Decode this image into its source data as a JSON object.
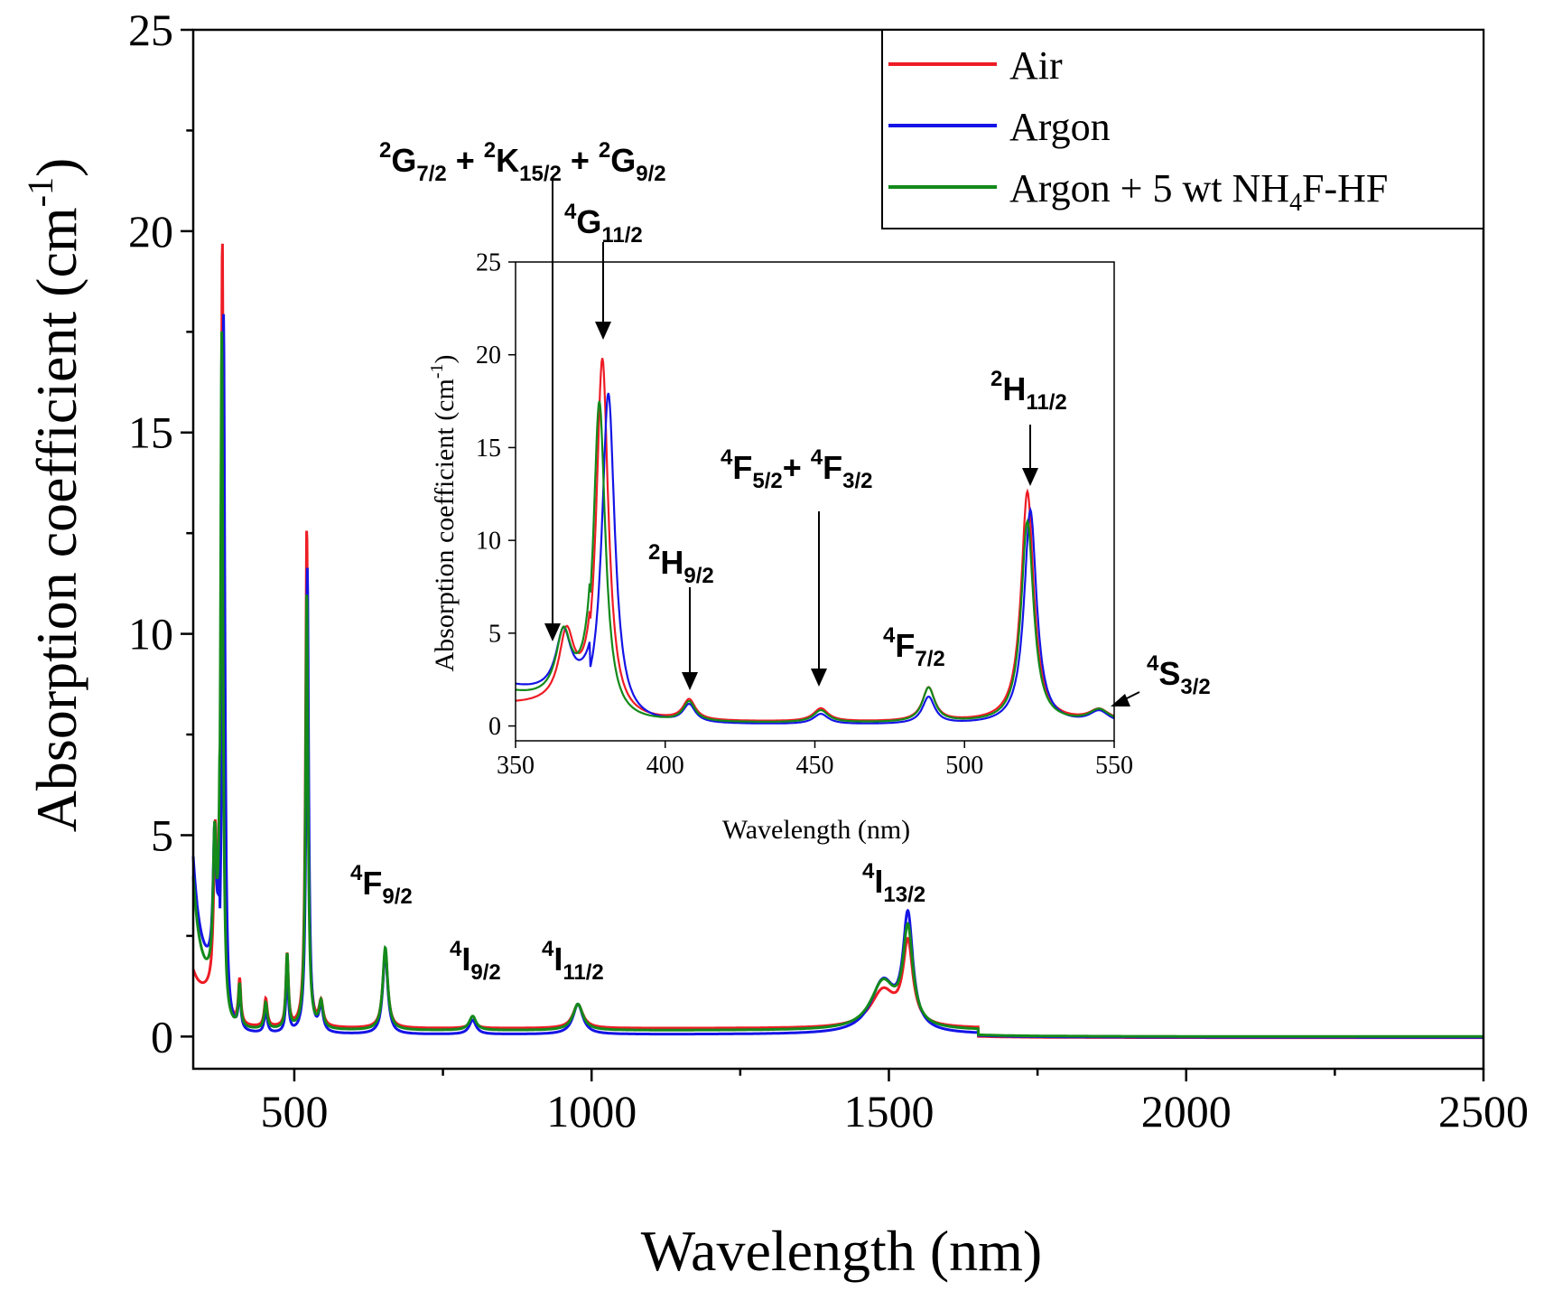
{
  "chart_data": [
    {
      "type": "line",
      "role": "main",
      "xlabel": "Wavelength (nm)",
      "ylabel": "Absorption coefficient (cm",
      "ylabel_sup": "-1",
      "ylabel_tail": ")",
      "xlim": [
        330,
        2500
      ],
      "ylim": [
        -0.8,
        25
      ],
      "x_ticks": [
        500,
        1000,
        1500,
        2000,
        2500
      ],
      "x_tick_labels": [
        "500",
        "1000",
        "1500",
        "2000",
        "2500"
      ],
      "x_minor_ticks": [
        750,
        1250,
        1750,
        2250
      ],
      "y_ticks": [
        0,
        5,
        10,
        15,
        20,
        25
      ],
      "y_tick_labels": [
        "0",
        "5",
        "10",
        "15",
        "20",
        "25"
      ],
      "y_minor_ticks": [
        2.5,
        7.5,
        12.5,
        17.5,
        22.5
      ],
      "legend": {
        "placement": "top-right",
        "entries": [
          {
            "label": "Air",
            "color": "#ee1c25"
          },
          {
            "label": "Argon",
            "color": "#1414e6"
          },
          {
            "label_main": "Argon + 5 wt NH",
            "label_sub": "4",
            "label_tail": "F-HF",
            "color": "#138a1a"
          }
        ]
      },
      "series": [
        {
          "name": "Air",
          "color": "#ee1c25",
          "baseline": 0.2,
          "long_baseline": -0.03,
          "start": 1.6,
          "start_min": 1.0,
          "peaks": [
            [
              367,
              3.8,
              3
            ],
            [
              379,
              19.6,
              2.4
            ],
            [
              408,
              1.3,
              2.5
            ],
            [
              452,
              0.9,
              3
            ],
            [
              488,
              2.0,
              2.5
            ],
            [
              521,
              12.6,
              2.5
            ],
            [
              545,
              0.8,
              4
            ],
            [
              653,
              2.1,
              5
            ],
            [
              800,
              0.4,
              7
            ],
            [
              977,
              0.8,
              10
            ],
            [
              1490,
              1.1,
              25
            ],
            [
              1532,
              2.2,
              10
            ]
          ]
        },
        {
          "name": "Argon",
          "color": "#1414e6",
          "baseline": 0.05,
          "long_baseline": -0.02,
          "start": 4.4,
          "start_min": 1.5,
          "peaks": [
            [
              366,
              3.2,
              3
            ],
            [
              381,
              17.8,
              2.6
            ],
            [
              408,
              1.0,
              2.5
            ],
            [
              452,
              0.6,
              3
            ],
            [
              488,
              1.5,
              2.5
            ],
            [
              522,
              11.6,
              2.5
            ],
            [
              545,
              0.7,
              4
            ],
            [
              653,
              2.1,
              5
            ],
            [
              800,
              0.4,
              7
            ],
            [
              977,
              0.8,
              10
            ],
            [
              1490,
              1.3,
              25
            ],
            [
              1532,
              2.8,
              10
            ]
          ]
        },
        {
          "name": "Argon + 5 wt NH4F-HF",
          "color": "#138a1a",
          "baseline": 0.15,
          "long_baseline": 0.0,
          "start": 3.9,
          "start_min": 1.2,
          "peaks": [
            [
              366,
              3.5,
              3
            ],
            [
              378,
              17.3,
              2.4
            ],
            [
              408,
              1.2,
              2.5
            ],
            [
              452,
              0.8,
              3
            ],
            [
              488,
              2.0,
              2.5
            ],
            [
              521,
              11.0,
              2.5
            ],
            [
              545,
              0.8,
              4
            ],
            [
              653,
              2.2,
              5
            ],
            [
              800,
              0.5,
              7
            ],
            [
              977,
              0.8,
              10
            ],
            [
              1490,
              1.3,
              25
            ],
            [
              1532,
              2.5,
              10
            ]
          ]
        }
      ],
      "annotations": [
        {
          "prefix": "4",
          "main": "F",
          "sub": "9/2"
        },
        {
          "prefix": "4",
          "main": "I",
          "sub": "9/2"
        },
        {
          "prefix": "4",
          "main": "I",
          "sub": "11/2"
        },
        {
          "prefix": "4",
          "main": "I",
          "sub": "13/2"
        }
      ]
    },
    {
      "type": "line",
      "role": "inset",
      "xlabel": "Wavelength (nm)",
      "ylabel": "Absorption coefficient (cm",
      "ylabel_sup": "-1",
      "ylabel_tail": ")",
      "xlim": [
        350,
        550
      ],
      "ylim": [
        -0.8,
        25
      ],
      "x_ticks": [
        350,
        400,
        450,
        500,
        550
      ],
      "x_tick_labels": [
        "350",
        "400",
        "450",
        "500",
        "550"
      ],
      "y_ticks": [
        0,
        5,
        10,
        15,
        20,
        25
      ],
      "y_tick_labels": [
        "0",
        "5",
        "10",
        "15",
        "20",
        "25"
      ],
      "annotations": [
        {
          "text": "2G7/2 + 2K15/2 + 2G9/2",
          "parts": [
            [
              "2",
              "G",
              "7/2"
            ],
            [
              "2",
              "K",
              "15/2"
            ],
            [
              "2",
              "G",
              "9/2"
            ]
          ],
          "joiner": " + "
        },
        {
          "prefix": "4",
          "main": "G",
          "sub": "11/2"
        },
        {
          "prefix": "2",
          "main": "H",
          "sub": "9/2"
        },
        {
          "text": "4F5/2+ 4F3/2",
          "parts": [
            [
              "4",
              "F",
              "5/2"
            ],
            [
              "4",
              "F",
              "3/2"
            ]
          ],
          "joiner": "+ "
        },
        {
          "prefix": "4",
          "main": "F",
          "sub": "7/2"
        },
        {
          "prefix": "2",
          "main": "H",
          "sub": "11/2"
        },
        {
          "prefix": "4",
          "main": "S",
          "sub": "3/2"
        }
      ]
    }
  ]
}
